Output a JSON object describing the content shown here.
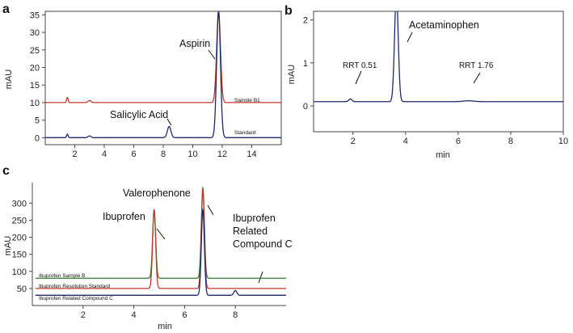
{
  "colors": {
    "red": "#c0392b",
    "navy": "#1f2a6b",
    "green": "#2e7d32",
    "dark": "#111111"
  },
  "chart_data": [
    {
      "panel": "a",
      "type": "line",
      "ylabel": "mAU",
      "xlabel": "",
      "xlim": [
        0,
        16
      ],
      "ylim": [
        -2,
        36
      ],
      "xticks": [
        2,
        4,
        6,
        8,
        10,
        12,
        14
      ],
      "yticks": [
        0,
        5,
        10,
        15,
        20,
        25,
        30,
        35
      ],
      "series": [
        {
          "name": "Sample B1",
          "color": "#c0392b",
          "baseline": 10,
          "peaks": [
            {
              "x": 1.5,
              "height": 1.5,
              "width": 0.05
            },
            {
              "x": 3.0,
              "height": 0.6,
              "width": 0.1
            },
            {
              "x": 11.75,
              "height": 26,
              "width": 0.13
            }
          ]
        },
        {
          "name": "Standard",
          "color": "#1f2a6b",
          "baseline": 0,
          "peaks": [
            {
              "x": 1.5,
              "height": 1.0,
              "width": 0.05
            },
            {
              "x": 3.0,
              "height": 0.5,
              "width": 0.1
            },
            {
              "x": 8.4,
              "height": 3.2,
              "width": 0.12
            },
            {
              "x": 11.75,
              "height": 36,
              "width": 0.13
            }
          ]
        }
      ],
      "annotations": [
        {
          "text": "Aspirin",
          "x": 11.6,
          "y": 21
        },
        {
          "text": "Salicylic Acid",
          "x": 8.2,
          "y": 4
        }
      ]
    },
    {
      "panel": "b",
      "type": "line",
      "ylabel": "mAU",
      "xlabel": "min",
      "xlim": [
        0.5,
        10
      ],
      "ylim": [
        -0.6,
        2.2
      ],
      "xticks": [
        2,
        4,
        6,
        8,
        10
      ],
      "yticks": [
        0,
        1,
        2
      ],
      "series": [
        {
          "name": "",
          "color": "#1f2a6b",
          "baseline": 0.1,
          "peaks": [
            {
              "x": 1.9,
              "height": 0.06,
              "width": 0.06
            },
            {
              "x": 3.65,
              "height": 2.5,
              "width": 0.07
            },
            {
              "x": 6.4,
              "height": 0.02,
              "width": 0.2
            }
          ]
        }
      ],
      "annotations": [
        {
          "text": "Acetaminophen",
          "x": 3.8,
          "y": 1.9
        },
        {
          "text": "RRT 0.51",
          "x": 1.9,
          "y": 0.25
        },
        {
          "text": "RRT 1.76",
          "x": 6.4,
          "y": 0.25
        }
      ]
    },
    {
      "panel": "c",
      "type": "line",
      "ylabel": "mAU",
      "xlabel": "min",
      "xlim": [
        0,
        10
      ],
      "ylim": [
        0,
        360
      ],
      "xticks": [
        2,
        4,
        6,
        8
      ],
      "yticks": [
        50,
        100,
        150,
        200,
        250,
        300
      ],
      "series": [
        {
          "name": "Ibuprofen Sample B",
          "color": "#2e7d32",
          "baseline": 80,
          "peaks": [
            {
              "x": 4.8,
              "height": 200,
              "width": 0.06
            },
            {
              "x": 6.72,
              "height": 265,
              "width": 0.06
            }
          ]
        },
        {
          "name": "Ibuprofen Resolution Standard",
          "color": "#c0392b",
          "baseline": 50,
          "peaks": [
            {
              "x": 4.8,
              "height": 230,
              "width": 0.06
            },
            {
              "x": 6.72,
              "height": 290,
              "width": 0.06
            }
          ]
        },
        {
          "name": "Ibuprofen Related Compound C",
          "color": "#1f2a6b",
          "baseline": 30,
          "peaks": [
            {
              "x": 6.72,
              "height": 250,
              "width": 0.06
            },
            {
              "x": 8.0,
              "height": 14,
              "width": 0.06
            }
          ]
        }
      ],
      "annotations": [
        {
          "text": "Valerophenone",
          "x": 6.3,
          "y": 250
        },
        {
          "text": "Ibuprofen",
          "x": 4.7,
          "y": 230
        },
        {
          "text": "Ibuprofen",
          "x": 6.9,
          "y": 200
        },
        {
          "text": "Related",
          "x": 6.9,
          "y": 200
        },
        {
          "text": "Compound C",
          "x": 6.9,
          "y": 200
        }
      ]
    }
  ],
  "labels": {
    "panel_a": "a",
    "panel_b": "b",
    "panel_c": "c",
    "mau": "mAU",
    "min": "min",
    "aspirin": "Aspirin",
    "salicylic": "Salicylic Acid",
    "sample_b1": "Sample B1",
    "standard": "Standard",
    "acetaminophen": "Acetaminophen",
    "rrt051": "RRT 0.51",
    "rrt176": "RRT 1.76",
    "valerophenone": "Valerophenone",
    "ibuprofen": "Ibuprofen",
    "ibu_rc_1": "Ibuprofen",
    "ibu_rc_2": "Related",
    "ibu_rc_3": "Compound C",
    "trace_sample_b": "Ibuprofen Sample B",
    "trace_res_std": "Ibuprofen Resolution Standard",
    "trace_rc_c": "Ibuprofen Related Compound C"
  }
}
